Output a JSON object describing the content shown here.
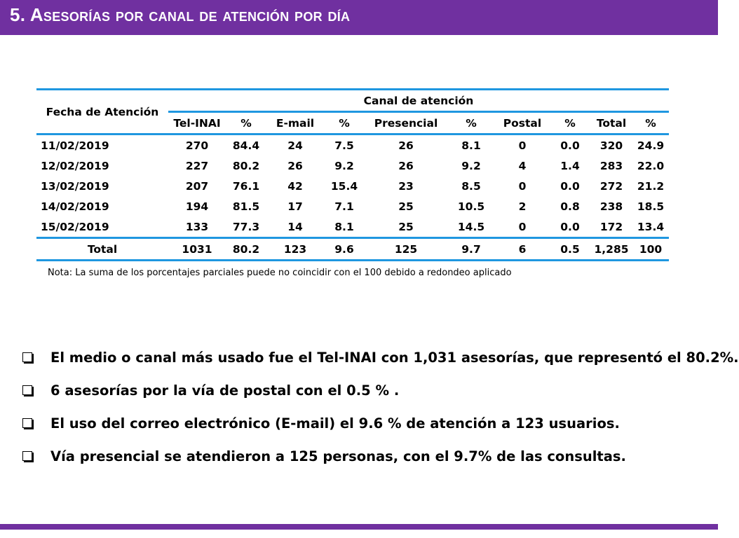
{
  "header": {
    "title": "5. Asesorías por canal de atención por día"
  },
  "table": {
    "date_header": "Fecha de Atención",
    "group_header": "Canal de atención",
    "columns": [
      "Tel-INAI",
      "%",
      "E-mail",
      "%",
      "Presencial",
      "%",
      "Postal",
      "%",
      "Total",
      "%"
    ],
    "rows": [
      [
        "11/02/2019",
        "270",
        "84.4",
        "24",
        "7.5",
        "26",
        "8.1",
        "0",
        "0.0",
        "320",
        "24.9"
      ],
      [
        "12/02/2019",
        "227",
        "80.2",
        "26",
        "9.2",
        "26",
        "9.2",
        "4",
        "1.4",
        "283",
        "22.0"
      ],
      [
        "13/02/2019",
        "207",
        "76.1",
        "42",
        "15.4",
        "23",
        "8.5",
        "0",
        "0.0",
        "272",
        "21.2"
      ],
      [
        "14/02/2019",
        "194",
        "81.5",
        "17",
        "7.1",
        "25",
        "10.5",
        "2",
        "0.8",
        "238",
        "18.5"
      ],
      [
        "15/02/2019",
        "133",
        "77.3",
        "14",
        "8.1",
        "25",
        "14.5",
        "0",
        "0.0",
        "172",
        "13.4"
      ]
    ],
    "total_row": [
      "Total",
      "1031",
      "80.2",
      "123",
      "9.6",
      "125",
      "9.7",
      "6",
      "0.5",
      "1,285",
      "100"
    ]
  },
  "note": "Nota: La suma de los porcentajes parciales puede no coincidir con el 100 debido a redondeo aplicado",
  "bullets": [
    "El medio o canal más usado fue el Tel-INAI con 1,031 asesorías, que representó el 80.2%.",
    "6 asesorías por la vía de postal con el 0.5 %  .",
    "El uso del correo electrónico (E-mail) el 9.6 % de atención a 123 usuarios.",
    "Vía presencial se atendieron a 125 personas, con el 9.7% de las consultas."
  ],
  "colors": {
    "accent": "#7030a0",
    "table_rule": "#1f97e0"
  },
  "icons": {
    "bullet": "checkbox-square-icon"
  }
}
